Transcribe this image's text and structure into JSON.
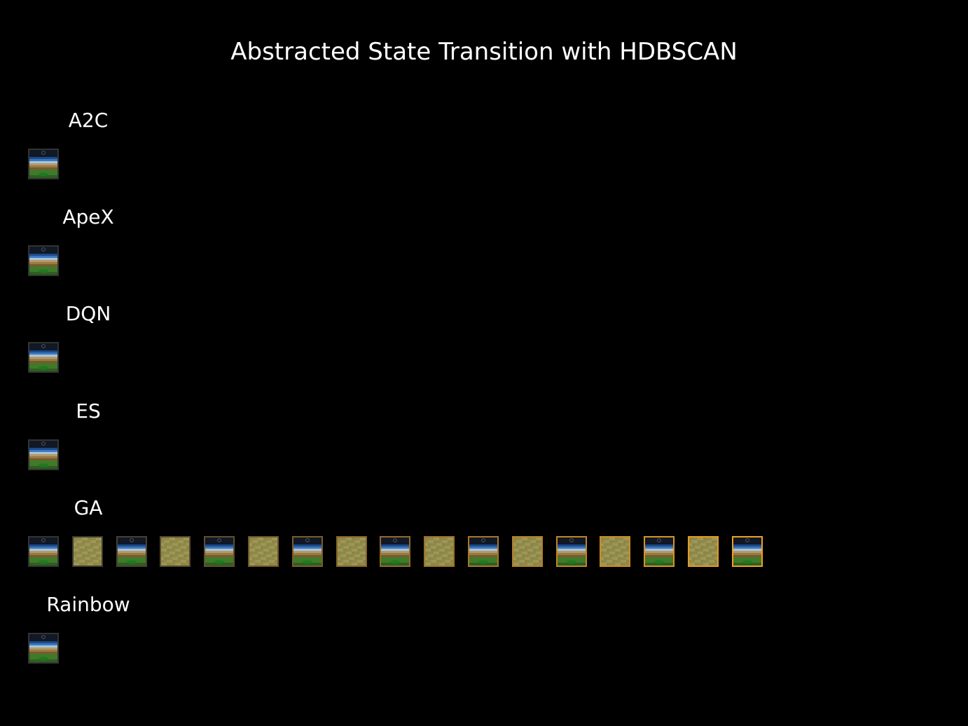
{
  "title": "Abstracted State Transition with HDBSCAN",
  "colors": {
    "background": "#000000",
    "text": "#ffffff",
    "border_start": "#333333",
    "border_end": "#f0a020"
  },
  "rows": [
    {
      "label": "A2C",
      "frames": [
        {
          "kind": "game-frame",
          "border_level": 0
        }
      ]
    },
    {
      "label": "ApeX",
      "frames": [
        {
          "kind": "game-frame",
          "border_level": 0
        }
      ]
    },
    {
      "label": "DQN",
      "frames": [
        {
          "kind": "game-frame",
          "border_level": 0
        }
      ]
    },
    {
      "label": "ES",
      "frames": [
        {
          "kind": "game-frame",
          "border_level": 0
        }
      ]
    },
    {
      "label": "GA",
      "frames": [
        {
          "kind": "game-frame",
          "border_level": 0
        },
        {
          "kind": "noise-frame",
          "border_level": 0.06
        },
        {
          "kind": "game-frame",
          "border_level": 0.12
        },
        {
          "kind": "noise-frame",
          "border_level": 0.19
        },
        {
          "kind": "game-frame",
          "border_level": 0.25
        },
        {
          "kind": "noise-frame",
          "border_level": 0.31
        },
        {
          "kind": "game-frame",
          "border_level": 0.38
        },
        {
          "kind": "noise-frame",
          "border_level": 0.44
        },
        {
          "kind": "game-frame",
          "border_level": 0.5
        },
        {
          "kind": "noise-frame",
          "border_level": 0.56
        },
        {
          "kind": "game-frame",
          "border_level": 0.62
        },
        {
          "kind": "noise-frame",
          "border_level": 0.69
        },
        {
          "kind": "game-frame",
          "border_level": 0.75
        },
        {
          "kind": "noise-frame",
          "border_level": 0.81
        },
        {
          "kind": "game-frame",
          "border_level": 0.88
        },
        {
          "kind": "noise-frame",
          "border_level": 0.94
        },
        {
          "kind": "game-frame",
          "border_level": 1
        }
      ]
    },
    {
      "label": "Rainbow",
      "frames": [
        {
          "kind": "game-frame",
          "border_level": 0
        }
      ]
    }
  ]
}
